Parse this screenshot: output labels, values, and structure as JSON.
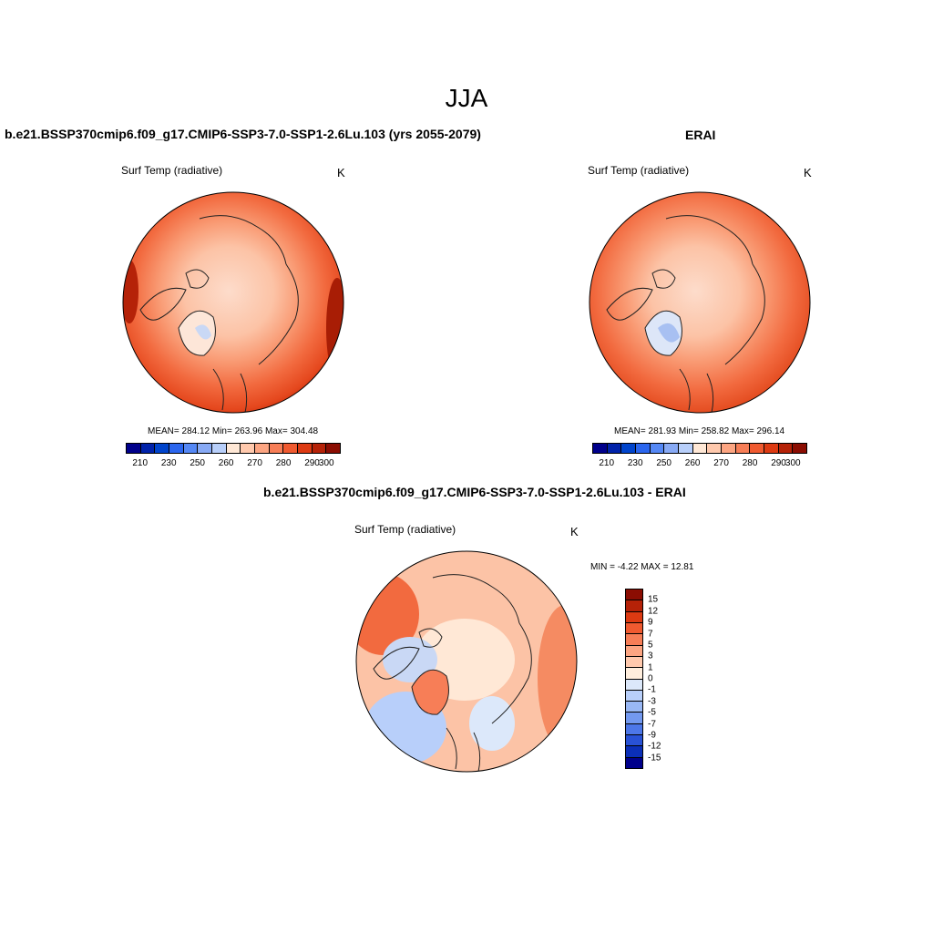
{
  "title": "JJA",
  "panels": {
    "model": {
      "title": "b.e21.BSSP370cmip6.f09_g17.CMIP6-SSP3-7.0-SSP1-2.6Lu.103 (yrs 2055-2079)",
      "variable": "Surf Temp (radiative)",
      "units": "K",
      "stats": "MEAN= 284.12  Min= 263.96  Max= 304.48"
    },
    "obs": {
      "title": "ERAI",
      "variable": "Surf Temp (radiative)",
      "units": "K",
      "stats": "MEAN= 281.93  Min= 258.82  Max= 296.14"
    },
    "diff": {
      "title": "b.e21.BSSP370cmip6.f09_g17.CMIP6-SSP3-7.0-SSP1-2.6Lu.103 - ERAI",
      "variable": "Surf Temp (radiative)",
      "units": "K",
      "stats": "MIN =  -4.22 MAX =  12.81"
    }
  },
  "colorbars": {
    "absolute": {
      "colors": [
        "#00008b",
        "#0022aa",
        "#0044cc",
        "#2b66ee",
        "#5588f5",
        "#88aaf5",
        "#b8cffa",
        "#ffe8d6",
        "#ffc9ad",
        "#fca582",
        "#f77e57",
        "#f05a30",
        "#dd3a12",
        "#b52208",
        "#8b0d02"
      ],
      "tick_labels": [
        "210",
        "230",
        "250",
        "260",
        "270",
        "280",
        "290",
        "300"
      ]
    },
    "difference": {
      "colors": [
        "#8b0d02",
        "#b52208",
        "#dd3a12",
        "#f05a30",
        "#f77e57",
        "#fca582",
        "#ffc9ad",
        "#ffeedd",
        "#dce8fa",
        "#b8cffa",
        "#99b8f5",
        "#7399f0",
        "#4d77e8",
        "#2952d6",
        "#0b2fb8",
        "#00008b"
      ],
      "tick_labels": [
        "15",
        "12",
        "9",
        "7",
        "5",
        "3",
        "1",
        "0",
        "-1",
        "-3",
        "-5",
        "-7",
        "-9",
        "-12",
        "-15"
      ]
    }
  }
}
